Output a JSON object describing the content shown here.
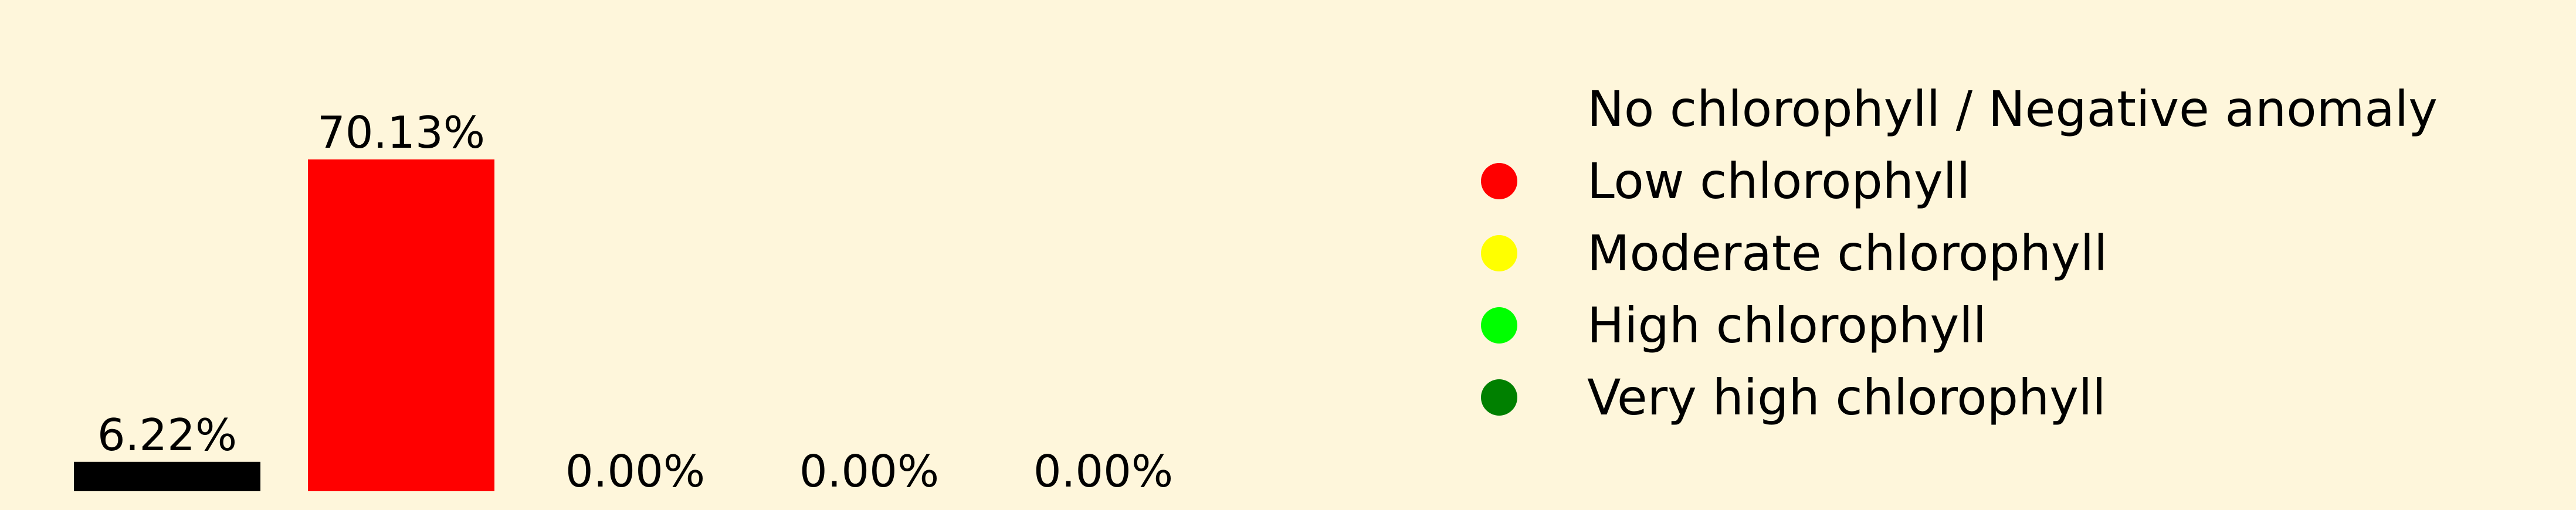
{
  "chart_data": {
    "type": "bar",
    "values": [
      6.22,
      70.13,
      0.0,
      0.0,
      0.0
    ],
    "labels": [
      "6.22%",
      "70.13%",
      "0.00%",
      "0.00%",
      "0.00%"
    ],
    "colors": [
      "#000000",
      "#ff0000",
      "#ffff00",
      "#00ff00",
      "#008000"
    ],
    "ylim": [
      0,
      72
    ],
    "grid": false,
    "legend_placement": "right",
    "legend": [
      {
        "label": "No chlorophyll / Negative anomaly",
        "color": "#000000",
        "marker": "none"
      },
      {
        "label": "Low chlorophyll",
        "color": "#ff0000",
        "marker": "circle"
      },
      {
        "label": "Moderate chlorophyll",
        "color": "#ffff00",
        "marker": "circle"
      },
      {
        "label": "High chlorophyll",
        "color": "#00ff00",
        "marker": "circle"
      },
      {
        "label": "Very high chlorophyll",
        "color": "#008000",
        "marker": "circle"
      }
    ]
  }
}
